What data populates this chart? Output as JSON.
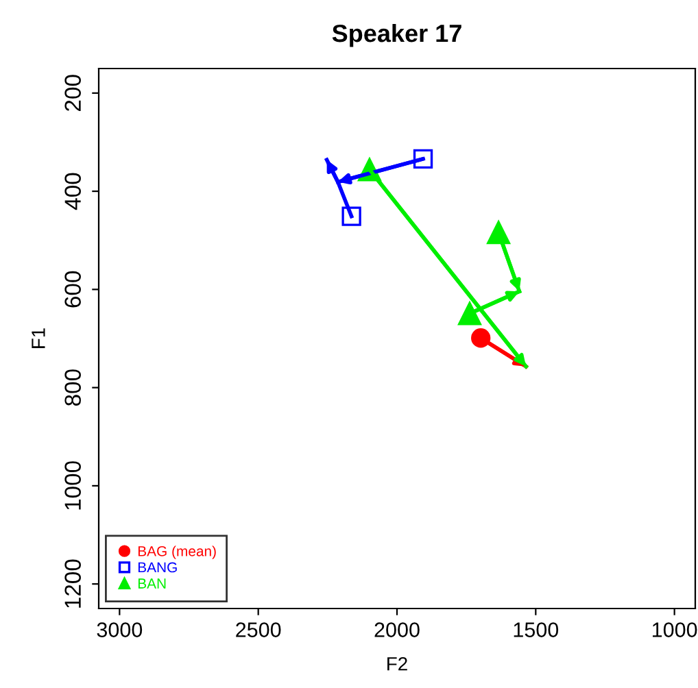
{
  "chart_data": {
    "type": "scatter",
    "title": "Speaker 17",
    "xlabel": "F2",
    "ylabel": "F1",
    "xlim": [
      3075,
      925
    ],
    "ylim": [
      1250,
      150
    ],
    "xticks": [
      3000,
      2500,
      2000,
      1500,
      1000
    ],
    "yticks": [
      200,
      400,
      600,
      800,
      1000,
      1200
    ],
    "grid": false,
    "legend": "bottom left",
    "series": [
      {
        "name": "BAG (mean)",
        "marker": "circle",
        "color": "#ff0000",
        "x": [
          1698
        ],
        "values": [
          699
        ]
      },
      {
        "name": "BANG",
        "marker": "square",
        "color": "#0000ff",
        "x": [
          1906,
          2164
        ],
        "values": [
          334,
          451
        ]
      },
      {
        "name": "BAN",
        "marker": "triangle",
        "color": "#00ee00",
        "x": [
          2099,
          1634,
          1738
        ],
        "values": [
          356,
          484,
          649
        ]
      },
      {
        "type": "line",
        "marker": "none",
        "color": "#ff0000",
        "x": [
          1698,
          1535
        ],
        "values": [
          699,
          757
        ]
      },
      {
        "type": "line",
        "marker": "none",
        "color": "#0000ff",
        "x": [
          1906,
          2213
        ],
        "values": [
          334,
          381
        ]
      },
      {
        "type": "line",
        "marker": "none",
        "color": "#0000ff",
        "x": [
          2164,
          2213,
          2253
        ],
        "values": [
          451,
          381,
          336
        ]
      },
      {
        "type": "line",
        "marker": "none",
        "color": "#00ee00",
        "x": [
          2099,
          1535
        ],
        "values": [
          356,
          757
        ]
      },
      {
        "type": "line",
        "marker": "none",
        "color": "#00ee00",
        "x": [
          1634,
          1559
        ],
        "values": [
          484,
          604
        ]
      },
      {
        "type": "line",
        "marker": "none",
        "color": "#00ee00",
        "x": [
          1738,
          1559
        ],
        "values": [
          649,
          604
        ]
      }
    ]
  }
}
